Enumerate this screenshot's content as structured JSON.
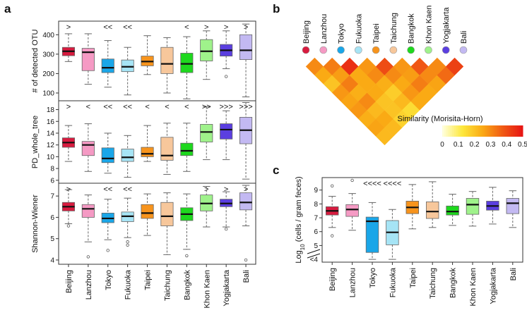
{
  "figure": {
    "panel_labels": [
      "a",
      "b",
      "c"
    ],
    "colors": {
      "red_sig": "#e0201c",
      "blue_sig": "#2a2ab8",
      "box_stroke": "#666666",
      "median": "#111111"
    }
  },
  "cities": [
    "Beijing",
    "Lanzhou",
    "Tokyo",
    "Fukuoka",
    "Taipei",
    "Taichung",
    "Bangkok",
    "Khon Kaen",
    "Yogjakarta",
    "Bali"
  ],
  "city_colors": [
    "#d81b3f",
    "#f59ac4",
    "#1aa6e8",
    "#a6e4f5",
    "#f7941d",
    "#f7c79b",
    "#1ed81e",
    "#9ff28b",
    "#5b3fe0",
    "#c3b9f2"
  ],
  "chart_data": [
    {
      "id": "a1",
      "type": "box",
      "panel": "a",
      "ylabel": "# of detected OTU",
      "ylim": [
        60,
        470
      ],
      "yticks": [
        100,
        200,
        300,
        400
      ],
      "significance": [
        ">",
        "",
        "<<",
        "<<",
        "",
        "",
        "<",
        ">",
        ">",
        ">"
      ],
      "boxes": [
        {
          "whislo": 262,
          "q1": 292,
          "med": 315,
          "q3": 335,
          "whishi": 405,
          "fliers": []
        },
        {
          "whislo": 145,
          "q1": 215,
          "med": 310,
          "q3": 330,
          "whishi": 405,
          "fliers": []
        },
        {
          "whislo": 130,
          "q1": 205,
          "med": 230,
          "q3": 275,
          "whishi": 370,
          "fliers": []
        },
        {
          "whislo": 90,
          "q1": 210,
          "med": 235,
          "q3": 270,
          "whishi": 335,
          "fliers": []
        },
        {
          "whislo": 195,
          "q1": 240,
          "med": 262,
          "q3": 290,
          "whishi": 395,
          "fliers": []
        },
        {
          "whislo": 100,
          "q1": 200,
          "med": 250,
          "q3": 335,
          "whishi": 385,
          "fliers": []
        },
        {
          "whislo": 70,
          "q1": 205,
          "med": 250,
          "q3": 305,
          "whishi": 390,
          "fliers": []
        },
        {
          "whislo": 170,
          "q1": 265,
          "med": 315,
          "q3": 375,
          "whishi": 420,
          "fliers": []
        },
        {
          "whislo": 225,
          "q1": 290,
          "med": 320,
          "q3": 350,
          "whishi": 420,
          "fliers": [
            185
          ]
        },
        {
          "whislo": 80,
          "q1": 272,
          "med": 320,
          "q3": 400,
          "whishi": 455,
          "fliers": []
        }
      ]
    },
    {
      "id": "a2",
      "type": "box",
      "panel": "a",
      "ylabel": "PD_whole_tree",
      "ylim": [
        5.5,
        19.5
      ],
      "yticks": [
        6,
        8,
        10,
        12,
        14,
        16,
        18
      ],
      "significance": [
        ">",
        "<",
        "<<",
        "<<",
        "<",
        "<",
        "<",
        ">>",
        ">>>",
        ">>>"
      ],
      "boxes": [
        {
          "whislo": 9.2,
          "q1": 11.6,
          "med": 12.4,
          "q3": 13.2,
          "whishi": 15.3,
          "fliers": []
        },
        {
          "whislo": 7.5,
          "q1": 10.2,
          "med": 12.0,
          "q3": 12.6,
          "whishi": 15.6,
          "fliers": []
        },
        {
          "whislo": 7.2,
          "q1": 9.0,
          "med": 9.7,
          "q3": 11.5,
          "whishi": 14.0,
          "fliers": []
        },
        {
          "whislo": 6.5,
          "q1": 9.2,
          "med": 9.9,
          "q3": 11.3,
          "whishi": 13.6,
          "fliers": []
        },
        {
          "whislo": 9.2,
          "q1": 10.0,
          "med": 10.5,
          "q3": 11.6,
          "whishi": 15.3,
          "fliers": []
        },
        {
          "whislo": 7.0,
          "q1": 9.4,
          "med": 10.2,
          "q3": 13.3,
          "whishi": 15.7,
          "fliers": []
        },
        {
          "whislo": 7.5,
          "q1": 10.2,
          "med": 11.0,
          "q3": 12.3,
          "whishi": 15.7,
          "fliers": []
        },
        {
          "whislo": 9.5,
          "q1": 12.5,
          "med": 14.2,
          "q3": 15.5,
          "whishi": 18.5,
          "fliers": []
        },
        {
          "whislo": 9.5,
          "q1": 13.0,
          "med": 14.6,
          "q3": 15.6,
          "whishi": 17.8,
          "fliers": []
        },
        {
          "whislo": 6.2,
          "q1": 12.2,
          "med": 14.5,
          "q3": 16.7,
          "whishi": 19.2,
          "fliers": []
        }
      ]
    },
    {
      "id": "a3",
      "type": "box",
      "panel": "a",
      "ylabel": "Shannon-Wiener",
      "ylim": [
        3.8,
        7.6
      ],
      "yticks": [
        4,
        5,
        6,
        7
      ],
      "significance": [
        ">",
        "",
        "<<",
        "<<",
        "",
        "",
        "",
        ">",
        ">",
        ">"
      ],
      "boxes": [
        {
          "whislo": 5.7,
          "q1": 6.3,
          "med": 6.5,
          "q3": 6.7,
          "whishi": 7.3,
          "fliers": [
            5.6
          ]
        },
        {
          "whislo": 4.85,
          "q1": 6.0,
          "med": 6.4,
          "q3": 6.6,
          "whishi": 7.05,
          "fliers": [
            4.15
          ]
        },
        {
          "whislo": 4.95,
          "q1": 5.75,
          "med": 5.95,
          "q3": 6.2,
          "whishi": 6.85,
          "fliers": [
            4.45
          ]
        },
        {
          "whislo": 5.05,
          "q1": 5.8,
          "med": 6.05,
          "q3": 6.25,
          "whishi": 6.9,
          "fliers": [
            4.85,
            4.7
          ]
        },
        {
          "whislo": 5.15,
          "q1": 5.95,
          "med": 6.2,
          "q3": 6.6,
          "whishi": 7.1,
          "fliers": []
        },
        {
          "whislo": 4.25,
          "q1": 5.6,
          "med": 6.05,
          "q3": 6.7,
          "whishi": 7.15,
          "fliers": []
        },
        {
          "whislo": 4.5,
          "q1": 5.85,
          "med": 6.15,
          "q3": 6.45,
          "whishi": 7.1,
          "fliers": [
            4.2
          ]
        },
        {
          "whislo": 5.55,
          "q1": 6.3,
          "med": 6.65,
          "q3": 7.05,
          "whishi": 7.45,
          "fliers": []
        },
        {
          "whislo": 5.55,
          "q1": 6.5,
          "med": 6.65,
          "q3": 6.85,
          "whishi": 7.2,
          "fliers": [
            5.45
          ]
        },
        {
          "whislo": 5.6,
          "q1": 6.35,
          "med": 6.7,
          "q3": 7.15,
          "whishi": 7.5,
          "fliers": [
            4.0
          ]
        }
      ]
    },
    {
      "id": "b",
      "type": "heatmap",
      "panel": "b",
      "title": "Similarity (Morisita-Horn)",
      "legend_ticks": [
        "0",
        "0.1",
        "0.2",
        "0.3",
        "0.4",
        "0.5"
      ],
      "legend_range": [
        0,
        0.5
      ],
      "matrix_upper": [
        [
          0.3,
          0.25,
          0.2,
          0.28,
          0.26,
          0.28,
          0.24,
          0.26,
          0.22
        ],
        [
          0.32,
          0.27,
          0.32,
          0.24,
          0.3,
          0.22,
          0.25,
          0.22
        ],
        [
          0.45,
          0.25,
          0.25,
          0.25,
          0.2,
          0.2,
          0.17
        ],
        [
          0.28,
          0.3,
          0.24,
          0.18,
          0.22,
          0.15
        ],
        [
          0.4,
          0.3,
          0.25,
          0.28,
          0.25
        ],
        [
          0.28,
          0.27,
          0.32,
          0.25
        ],
        [
          0.38,
          0.3,
          0.26
        ],
        [
          0.3,
          0.35
        ],
        [
          0.42
        ]
      ]
    },
    {
      "id": "c",
      "type": "box",
      "panel": "c",
      "ylabel": "Log10 (cells / gram feces)",
      "ylim": [
        3.8,
        9.9
      ],
      "yticks": [
        5,
        6,
        7,
        8,
        9
      ],
      "ytick_extra": "<4",
      "significance": [
        "",
        "",
        "<<<<",
        "<<<<",
        "",
        "",
        "",
        "",
        "",
        ""
      ],
      "boxes": [
        {
          "whislo": 6.3,
          "q1": 7.2,
          "med": 7.5,
          "q3": 7.8,
          "whishi": 8.55,
          "fliers": [
            9.3,
            5.7
          ]
        },
        {
          "whislo": 6.1,
          "q1": 7.1,
          "med": 7.6,
          "q3": 7.95,
          "whishi": 8.75,
          "fliers": [
            9.7
          ]
        },
        {
          "whislo": 4.0,
          "q1": 4.5,
          "med": 6.75,
          "q3": 7.05,
          "whishi": 8.1,
          "fliers": []
        },
        {
          "whislo": 4.0,
          "q1": 5.05,
          "med": 5.95,
          "q3": 6.8,
          "whishi": 7.6,
          "fliers": []
        },
        {
          "whislo": 6.2,
          "q1": 7.3,
          "med": 7.75,
          "q3": 8.2,
          "whishi": 9.4,
          "fliers": []
        },
        {
          "whislo": 6.3,
          "q1": 6.95,
          "med": 7.45,
          "q3": 8.15,
          "whishi": 9.6,
          "fliers": []
        },
        {
          "whislo": 6.45,
          "q1": 7.2,
          "med": 7.45,
          "q3": 7.85,
          "whishi": 8.7,
          "fliers": []
        },
        {
          "whislo": 6.4,
          "q1": 7.25,
          "med": 7.95,
          "q3": 8.4,
          "whishi": 8.9,
          "fliers": []
        },
        {
          "whislo": 6.55,
          "q1": 7.55,
          "med": 7.85,
          "q3": 8.2,
          "whishi": 9.2,
          "fliers": []
        },
        {
          "whislo": 6.3,
          "q1": 7.3,
          "med": 8.05,
          "q3": 8.4,
          "whishi": 8.95,
          "fliers": []
        }
      ]
    }
  ]
}
